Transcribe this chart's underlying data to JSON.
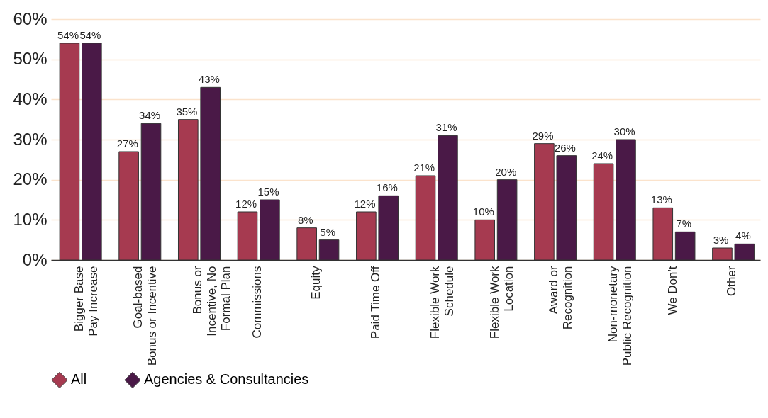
{
  "chart_data": {
    "type": "bar",
    "categories": [
      "Bigger Base\nPay Increase",
      "Goal-based\nBonus or Incentive",
      "Bonus or\nIncentive, No\nFormal Plan",
      "Commissions",
      "Equity",
      "Paid Time Off",
      "Flexible Work\nSchedule",
      "Flexible Work\nLocation",
      "Award or\nRecognition",
      "Non-monetary\nPublic Recognition",
      "We Don't",
      "Other"
    ],
    "series": [
      {
        "name": "All",
        "color": "#a63a50",
        "values": [
          54,
          27,
          35,
          12,
          8,
          12,
          21,
          10,
          29,
          24,
          13,
          3
        ],
        "value_labels": [
          "54%",
          "27%",
          "35%",
          "12%",
          "8%",
          "12%",
          "21%",
          "10%",
          "29%",
          "24%",
          "13%",
          "3%"
        ]
      },
      {
        "name": "Agencies & Consultancies",
        "color": "#4a1947",
        "values": [
          54,
          34,
          43,
          15,
          5,
          16,
          31,
          20,
          26,
          30,
          7,
          4
        ],
        "value_labels": [
          "54%",
          "34%",
          "43%",
          "15%",
          "5%",
          "16%",
          "31%",
          "20%",
          "26%",
          "30%",
          "7%",
          "4%"
        ]
      }
    ],
    "ylim": [
      0,
      60
    ],
    "yticks": [
      {
        "value": 0,
        "label": "0%"
      },
      {
        "value": 10,
        "label": "10%"
      },
      {
        "value": 20,
        "label": "20%"
      },
      {
        "value": 30,
        "label": "30%"
      },
      {
        "value": 40,
        "label": "40%"
      },
      {
        "value": 50,
        "label": "50%"
      },
      {
        "value": 60,
        "label": "60%"
      }
    ],
    "grid": "y",
    "legend": "bottom"
  }
}
